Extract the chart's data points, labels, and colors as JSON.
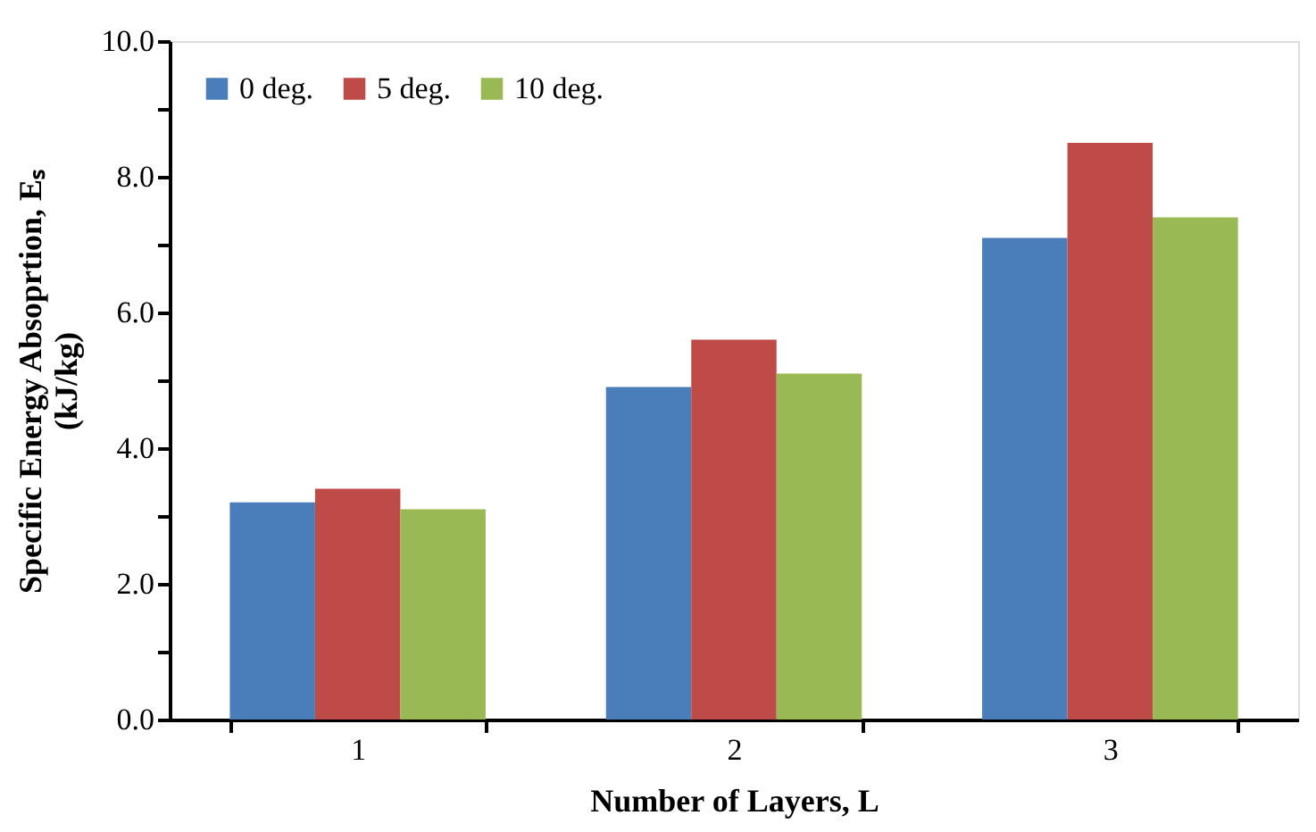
{
  "chart_data": {
    "type": "bar",
    "xlabel": "Number of Layers, L",
    "ylabel": "Specific Energy Absoprtion, Eₛ\n(kJ/kg)",
    "categories": [
      "1",
      "2",
      "3"
    ],
    "series": [
      {
        "name": "0 deg.",
        "color": "#4a7ebb",
        "values": [
          3.2,
          4.9,
          7.1
        ]
      },
      {
        "name": "5 deg.",
        "color": "#be4b48",
        "values": [
          3.4,
          5.6,
          8.5
        ]
      },
      {
        "name": "10 deg.",
        "color": "#98b954",
        "values": [
          3.1,
          5.1,
          7.4
        ]
      }
    ],
    "ylim": [
      0,
      10
    ],
    "yticks": [
      {
        "value": 0,
        "label": "0.0"
      },
      {
        "value": 1,
        "label": null
      },
      {
        "value": 2,
        "label": "2.0"
      },
      {
        "value": 3,
        "label": null
      },
      {
        "value": 4,
        "label": "4.0"
      },
      {
        "value": 5,
        "label": null
      },
      {
        "value": 6,
        "label": "6.0"
      },
      {
        "value": 7,
        "label": null
      },
      {
        "value": 8,
        "label": "8.0"
      },
      {
        "value": 9,
        "label": null
      },
      {
        "value": 10,
        "label": "10.0"
      }
    ],
    "grid": false,
    "legend": "top left"
  }
}
